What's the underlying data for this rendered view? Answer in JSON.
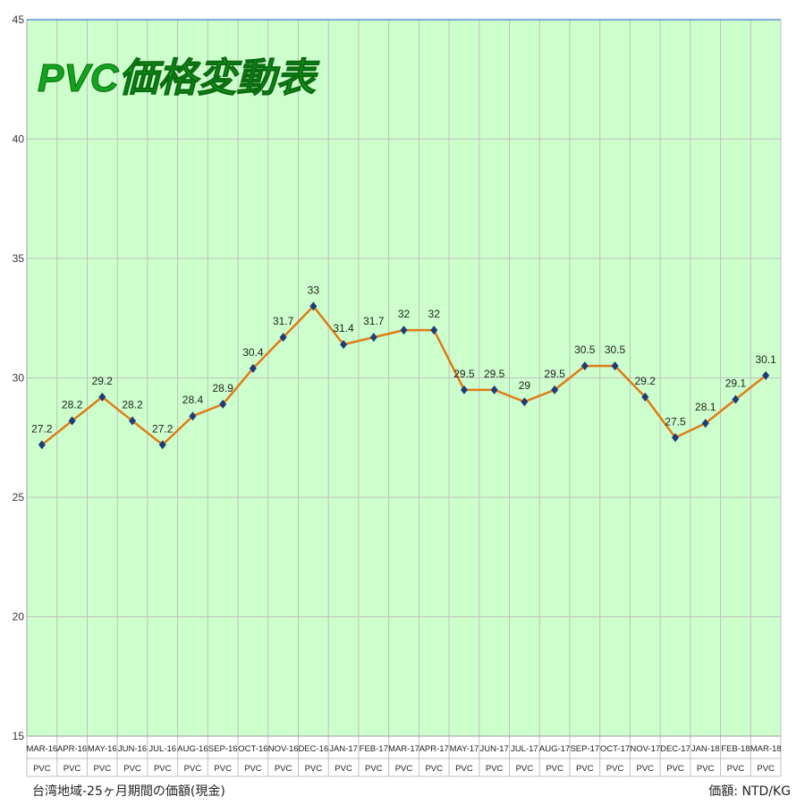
{
  "chart_data": {
    "type": "line",
    "title": "PVC価格変動表",
    "categories": [
      "MAR-16",
      "APR-16",
      "MAY-16",
      "JUN-16",
      "JUL-16",
      "AUG-16",
      "SEP-16",
      "OCT-16",
      "NOV-16",
      "DEC-16",
      "JAN-17",
      "FEB-17",
      "MAR-17",
      "APR-17",
      "MAY-17",
      "JUN-17",
      "JUL-17",
      "AUG-17",
      "SEP-17",
      "OCT-17",
      "NOV-17",
      "DEC-17",
      "JAN-18",
      "FEB-18",
      "MAR-18"
    ],
    "subcategory_label": "PVC",
    "values": [
      27.2,
      28.2,
      29.2,
      28.2,
      27.2,
      28.4,
      28.9,
      30.4,
      31.7,
      33,
      31.4,
      31.7,
      32,
      32,
      29.5,
      29.5,
      29,
      29.5,
      30.5,
      30.5,
      29.2,
      27.5,
      28.1,
      29.1,
      30.1
    ],
    "ylim": [
      15,
      45
    ],
    "yticks": [
      15,
      20,
      25,
      30,
      35,
      40,
      45
    ],
    "grid": true,
    "data_labels": true,
    "footnote_left": "台湾地域-25ヶ月期間の価額(現金)",
    "footnote_right": "価額: NTD/KG",
    "colors": {
      "plot_background": "#ccffcc",
      "line": "#e07b16",
      "marker": "#1f3c78",
      "title_fill": "#13a31e",
      "gridline": "#c0c0c0"
    }
  }
}
